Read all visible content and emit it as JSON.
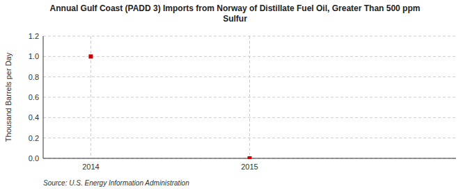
{
  "chart_data": {
    "type": "scatter",
    "title": "Annual Gulf Coast (PADD 3) Imports from Norway of Distillate Fuel Oil, Greater Than 500 ppm\nSulfur",
    "ylabel": "Thousand Barrels per Day",
    "source": "Source: U.S. Energy Information Administration",
    "x": [
      2014,
      2015
    ],
    "values": [
      1.0,
      0.0
    ],
    "color": "#cc0000",
    "marker": "square",
    "xlim": [
      2013.7,
      2016.3
    ],
    "xticks": [
      2014,
      2015
    ],
    "ylim": [
      0.0,
      1.2
    ],
    "yticks": [
      {
        "value": 0.0,
        "label": "0.0"
      },
      0.2,
      0.4,
      0.6,
      0.8,
      {
        "value": 1.0,
        "label": "1.0"
      },
      1.2
    ],
    "grid": true
  }
}
